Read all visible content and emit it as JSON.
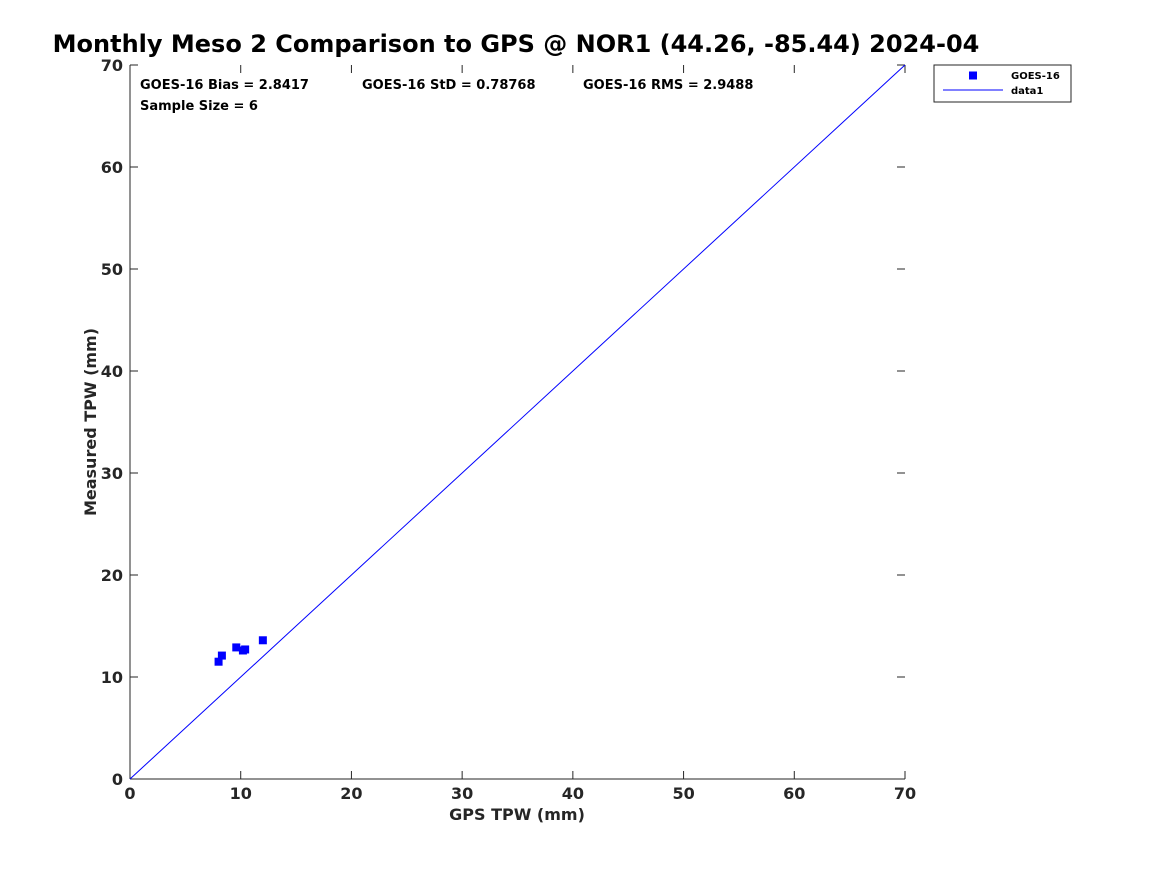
{
  "chart_data": {
    "type": "scatter",
    "title": "Monthly Meso 2 Comparison to GPS @ NOR1 (44.26, -85.44) 2024-04",
    "xlabel": "GPS TPW (mm)",
    "ylabel": "Measured TPW (mm)",
    "xlim": [
      0,
      70
    ],
    "ylim": [
      0,
      70
    ],
    "xticks": [
      0,
      10,
      20,
      30,
      40,
      50,
      60,
      70
    ],
    "yticks": [
      0,
      10,
      20,
      30,
      40,
      50,
      60,
      70
    ],
    "grid": false,
    "legend_position": "top-right outside",
    "annotations": [
      "GOES-16 Bias = 2.8417",
      "GOES-16 StD = 0.78768",
      "GOES-16 RMS = 2.9488",
      "Sample Size = 6"
    ],
    "series": [
      {
        "name": "GOES-16",
        "kind": "scatter",
        "marker": "square",
        "color": "#0000ff",
        "points": [
          {
            "x": 8.0,
            "y": 11.5
          },
          {
            "x": 8.3,
            "y": 12.1
          },
          {
            "x": 9.6,
            "y": 12.9
          },
          {
            "x": 10.2,
            "y": 12.6
          },
          {
            "x": 10.4,
            "y": 12.7
          },
          {
            "x": 12.0,
            "y": 13.6
          }
        ]
      },
      {
        "name": "data1",
        "kind": "line",
        "color": "#0000ff",
        "points": [
          {
            "x": 0,
            "y": 0
          },
          {
            "x": 70,
            "y": 70
          }
        ]
      }
    ]
  }
}
